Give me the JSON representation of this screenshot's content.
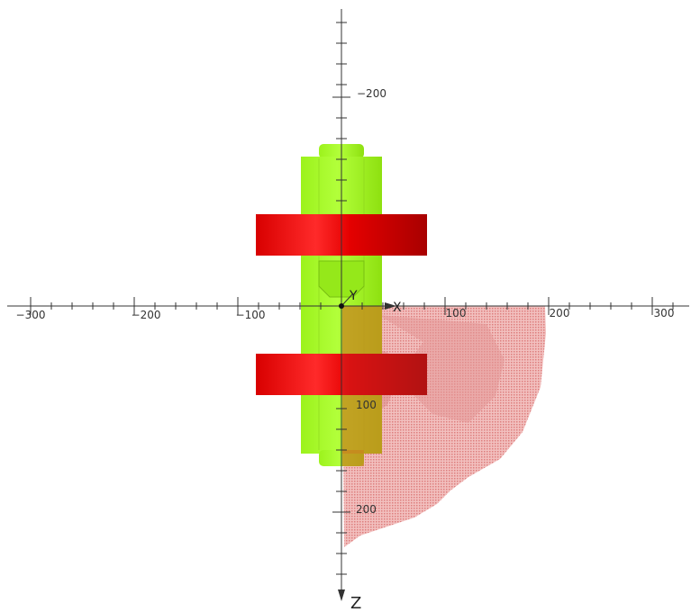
{
  "axes": {
    "x_label": "X",
    "y_label": "Y",
    "z_label": "Z",
    "x_tick_labels": [
      "−300",
      "−200",
      "−100",
      "100",
      "200",
      "300"
    ],
    "z_tick_labels": [
      "−200",
      "100",
      "200"
    ]
  },
  "colors": {
    "green_part": "#a3f522",
    "red_part": "#e60000",
    "pink_surface": "#e8908f",
    "orange_overlap": "#c8861f",
    "axis": "#333333"
  }
}
